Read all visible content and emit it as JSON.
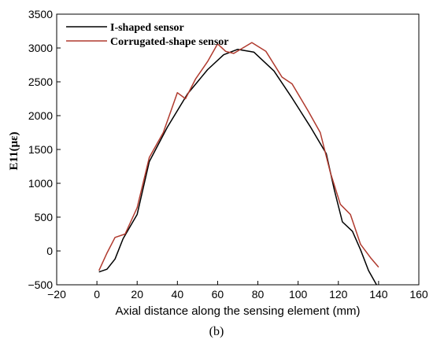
{
  "chart_data": {
    "type": "line",
    "xlabel": "Axial distance along the sensing element (mm)",
    "ylabel": "E11(με)",
    "caption": "(b)",
    "xlim": [
      -20,
      160
    ],
    "ylim": [
      -500,
      3500
    ],
    "x_ticks": [
      "−20",
      "0",
      "20",
      "40",
      "60",
      "80",
      "100",
      "120",
      "140",
      "160"
    ],
    "y_ticks": [
      "−500",
      "0",
      "500",
      "1000",
      "1500",
      "2000",
      "2500",
      "3000",
      "3500"
    ],
    "legend_position": "top-left",
    "series": [
      {
        "name": "I-shaped sensor",
        "color": "#000000",
        "points": [
          [
            1,
            -310
          ],
          [
            5,
            -270
          ],
          [
            9,
            -120
          ],
          [
            13,
            180
          ],
          [
            20,
            540
          ],
          [
            26,
            1320
          ],
          [
            35,
            1830
          ],
          [
            45,
            2320
          ],
          [
            55,
            2680
          ],
          [
            63,
            2900
          ],
          [
            70,
            2980
          ],
          [
            78,
            2940
          ],
          [
            88,
            2660
          ],
          [
            97,
            2260
          ],
          [
            106,
            1840
          ],
          [
            114,
            1440
          ],
          [
            118,
            900
          ],
          [
            122,
            430
          ],
          [
            127,
            290
          ],
          [
            131,
            20
          ],
          [
            135,
            -290
          ],
          [
            139,
            -500
          ]
        ]
      },
      {
        "name": "Corrugated-shape sensor",
        "color": "#b03a2e",
        "points": [
          [
            1,
            -290
          ],
          [
            5,
            -30
          ],
          [
            9,
            200
          ],
          [
            14,
            250
          ],
          [
            20,
            640
          ],
          [
            26,
            1380
          ],
          [
            33,
            1750
          ],
          [
            40,
            2340
          ],
          [
            44,
            2250
          ],
          [
            49,
            2540
          ],
          [
            55,
            2800
          ],
          [
            60,
            3060
          ],
          [
            64,
            2950
          ],
          [
            68,
            2920
          ],
          [
            77,
            3080
          ],
          [
            84,
            2950
          ],
          [
            92,
            2570
          ],
          [
            97,
            2470
          ],
          [
            105,
            2070
          ],
          [
            111,
            1750
          ],
          [
            116,
            1160
          ],
          [
            121,
            690
          ],
          [
            126,
            540
          ],
          [
            131,
            100
          ],
          [
            136,
            -100
          ],
          [
            140,
            -240
          ]
        ]
      }
    ]
  }
}
